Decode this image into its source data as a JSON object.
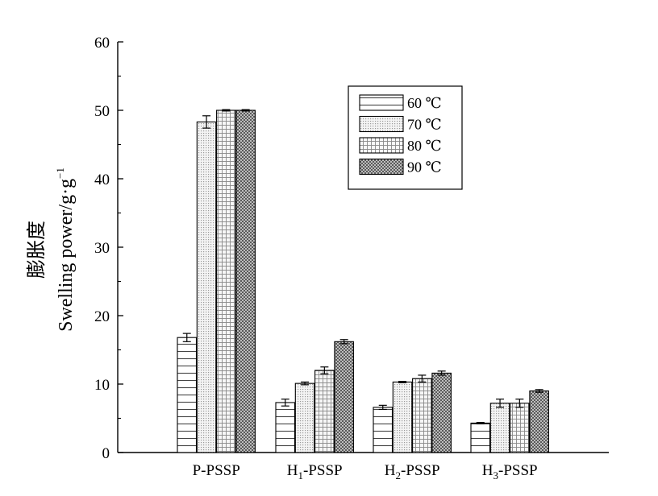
{
  "chart_data": {
    "type": "bar",
    "title": "",
    "xlabel": "",
    "ylabel_cn": "膨胀度",
    "ylabel_en": "Swelling power/g·g",
    "ylabel_sup": "−1",
    "ylim": [
      0,
      60
    ],
    "yticks": [
      0,
      10,
      20,
      30,
      40,
      50,
      60
    ],
    "categories": [
      {
        "base": "P-PSSP",
        "sub": "",
        "tail": ""
      },
      {
        "base": "H",
        "sub": "1",
        "tail": "-PSSP"
      },
      {
        "base": "H",
        "sub": "2",
        "tail": "-PSSP"
      },
      {
        "base": "H",
        "sub": "3",
        "tail": "-PSSP"
      }
    ],
    "series": [
      {
        "name": "60 ℃",
        "pattern": "horizontal-lines",
        "values": [
          16.8,
          7.3,
          6.6,
          4.3
        ],
        "errors": [
          0.6,
          0.5,
          0.3,
          0.1
        ]
      },
      {
        "name": "70 ℃",
        "pattern": "fine-dots",
        "values": [
          48.3,
          10.1,
          10.3,
          7.2
        ],
        "errors": [
          0.9,
          0.2,
          0.1,
          0.6
        ]
      },
      {
        "name": "80 ℃",
        "pattern": "grid",
        "values": [
          50.0,
          12.0,
          10.8,
          7.2
        ],
        "errors": [
          0.1,
          0.5,
          0.5,
          0.6
        ]
      },
      {
        "name": "90 ℃",
        "pattern": "dense-crosshatch",
        "values": [
          50.0,
          16.2,
          11.6,
          9.0
        ],
        "errors": [
          0.1,
          0.3,
          0.3,
          0.2
        ]
      }
    ],
    "grid": false,
    "legend_position": "top-right"
  }
}
